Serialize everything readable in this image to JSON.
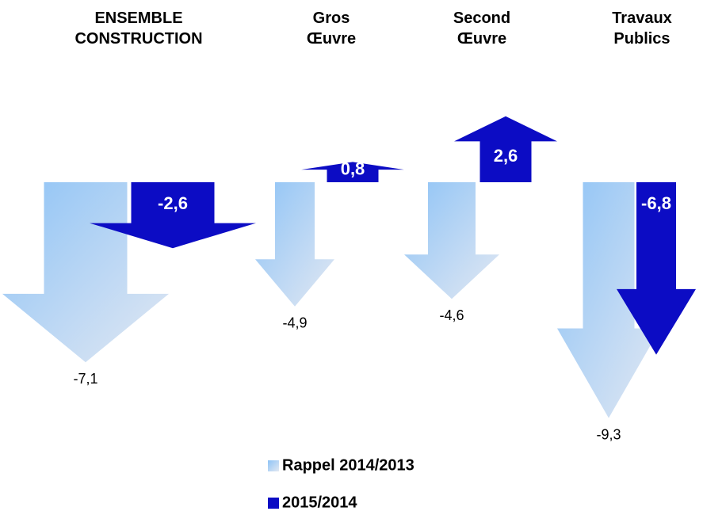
{
  "chart_data": {
    "type": "arrow",
    "categories": [
      "ENSEMBLE\nCONSTRUCTION",
      "Gros\nŒuvre",
      "Second\nŒuvre",
      "Travaux\nPublics"
    ],
    "series": [
      {
        "name": "Rappel 2014/2013",
        "color": "#8ec3f6",
        "values": [
          -7.1,
          -4.9,
          -4.6,
          -9.3
        ],
        "value_labels": [
          "-7,1",
          "-4,9",
          "-4,6",
          "-9,3"
        ]
      },
      {
        "name": "2015/2014",
        "color": "#0c0cc4",
        "values": [
          -2.6,
          0.8,
          2.6,
          -6.8
        ],
        "value_labels": [
          "-2,6",
          "0,8",
          "2,6",
          "-6,8"
        ]
      }
    ]
  }
}
